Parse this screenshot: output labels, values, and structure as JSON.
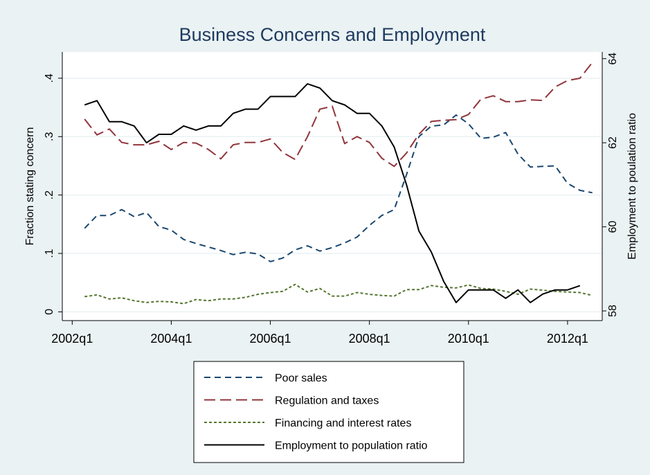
{
  "chart_data": {
    "type": "line",
    "title": "Business Concerns and Employment",
    "y_label": "Fraction stating concern",
    "y2_label": "Employment to poulation ratio",
    "x": [
      2002.25,
      2002.5,
      2002.75,
      2003,
      2003.25,
      2003.5,
      2003.75,
      2004,
      2004.25,
      2004.5,
      2004.75,
      2005,
      2005.25,
      2005.5,
      2005.75,
      2006,
      2006.25,
      2006.5,
      2006.75,
      2007,
      2007.25,
      2007.5,
      2007.75,
      2008,
      2008.25,
      2008.5,
      2008.75,
      2009,
      2009.25,
      2009.5,
      2009.75,
      2010,
      2010.25,
      2010.5,
      2010.75,
      2011,
      2011.25,
      2011.5,
      2011.75,
      2012,
      2012.25,
      2012.5
    ],
    "xlim": [
      2001.8,
      2012.7
    ],
    "xticks": [
      {
        "value": 2002,
        "label": "2002q1"
      },
      {
        "value": 2004,
        "label": "2004q1"
      },
      {
        "value": 2006,
        "label": "2006q1"
      },
      {
        "value": 2008,
        "label": "2008q1"
      },
      {
        "value": 2010,
        "label": "2010q1"
      },
      {
        "value": 2012,
        "label": "2012q1"
      }
    ],
    "ylim": [
      -0.015,
      0.445
    ],
    "yticks": [
      0,
      {
        "value": 0.1,
        "label": ".1"
      },
      {
        "value": 0.2,
        "label": ".2"
      },
      {
        "value": 0.3,
        "label": ".3"
      },
      {
        "value": 0.4,
        "label": ".4"
      }
    ],
    "y2lim": [
      57.77,
      64.16
    ],
    "y2ticks": [
      58,
      60,
      62,
      64
    ],
    "grid": true,
    "series": [
      {
        "name": "Poor sales",
        "color": "#1a476f",
        "dash": "9,6",
        "values": [
          0.143,
          0.165,
          0.165,
          0.175,
          0.163,
          0.17,
          0.146,
          0.14,
          0.124,
          0.117,
          0.111,
          0.105,
          0.098,
          0.102,
          0.099,
          0.086,
          0.092,
          0.106,
          0.113,
          0.104,
          0.11,
          0.118,
          0.128,
          0.148,
          0.165,
          0.175,
          0.235,
          0.3,
          0.318,
          0.32,
          0.337,
          0.322,
          0.297,
          0.299,
          0.307,
          0.27,
          0.248,
          0.249,
          0.25,
          0.22,
          0.208,
          0.204
        ]
      },
      {
        "name": "Regulation and taxes",
        "color": "#90353b",
        "dash": "16,7",
        "values": [
          0.33,
          0.303,
          0.313,
          0.29,
          0.286,
          0.286,
          0.292,
          0.278,
          0.29,
          0.289,
          0.278,
          0.262,
          0.286,
          0.29,
          0.29,
          0.296,
          0.273,
          0.261,
          0.3,
          0.347,
          0.352,
          0.288,
          0.3,
          0.29,
          0.263,
          0.249,
          0.272,
          0.304,
          0.326,
          0.328,
          0.329,
          0.338,
          0.364,
          0.37,
          0.36,
          0.36,
          0.363,
          0.362,
          0.385,
          0.396,
          0.4,
          0.427
        ]
      },
      {
        "name": "Financing and interest rates",
        "color": "#55752f",
        "dash": "4,3",
        "values": [
          0.026,
          0.029,
          0.022,
          0.024,
          0.019,
          0.016,
          0.018,
          0.017,
          0.014,
          0.021,
          0.019,
          0.022,
          0.022,
          0.025,
          0.03,
          0.033,
          0.035,
          0.047,
          0.034,
          0.04,
          0.027,
          0.027,
          0.033,
          0.03,
          0.028,
          0.027,
          0.038,
          0.038,
          0.045,
          0.042,
          0.041,
          0.046,
          0.04,
          0.039,
          0.035,
          0.03,
          0.039,
          0.037,
          0.035,
          0.034,
          0.033,
          0.028
        ]
      },
      {
        "name": "Employment to population ratio",
        "color": "#000000",
        "axis": "y2",
        "values": [
          62.9,
          63.0,
          62.5,
          62.5,
          62.4,
          62.0,
          62.2,
          62.2,
          62.4,
          62.3,
          62.4,
          62.4,
          62.7,
          62.8,
          62.8,
          63.1,
          63.1,
          63.1,
          63.4,
          63.3,
          63.0,
          62.9,
          62.7,
          62.7,
          62.4,
          61.9,
          61.0,
          59.9,
          59.4,
          58.7,
          58.2,
          58.5,
          58.5,
          58.5,
          58.3,
          58.5,
          58.2,
          58.4,
          58.5,
          58.5,
          58.6,
          null
        ]
      }
    ]
  }
}
